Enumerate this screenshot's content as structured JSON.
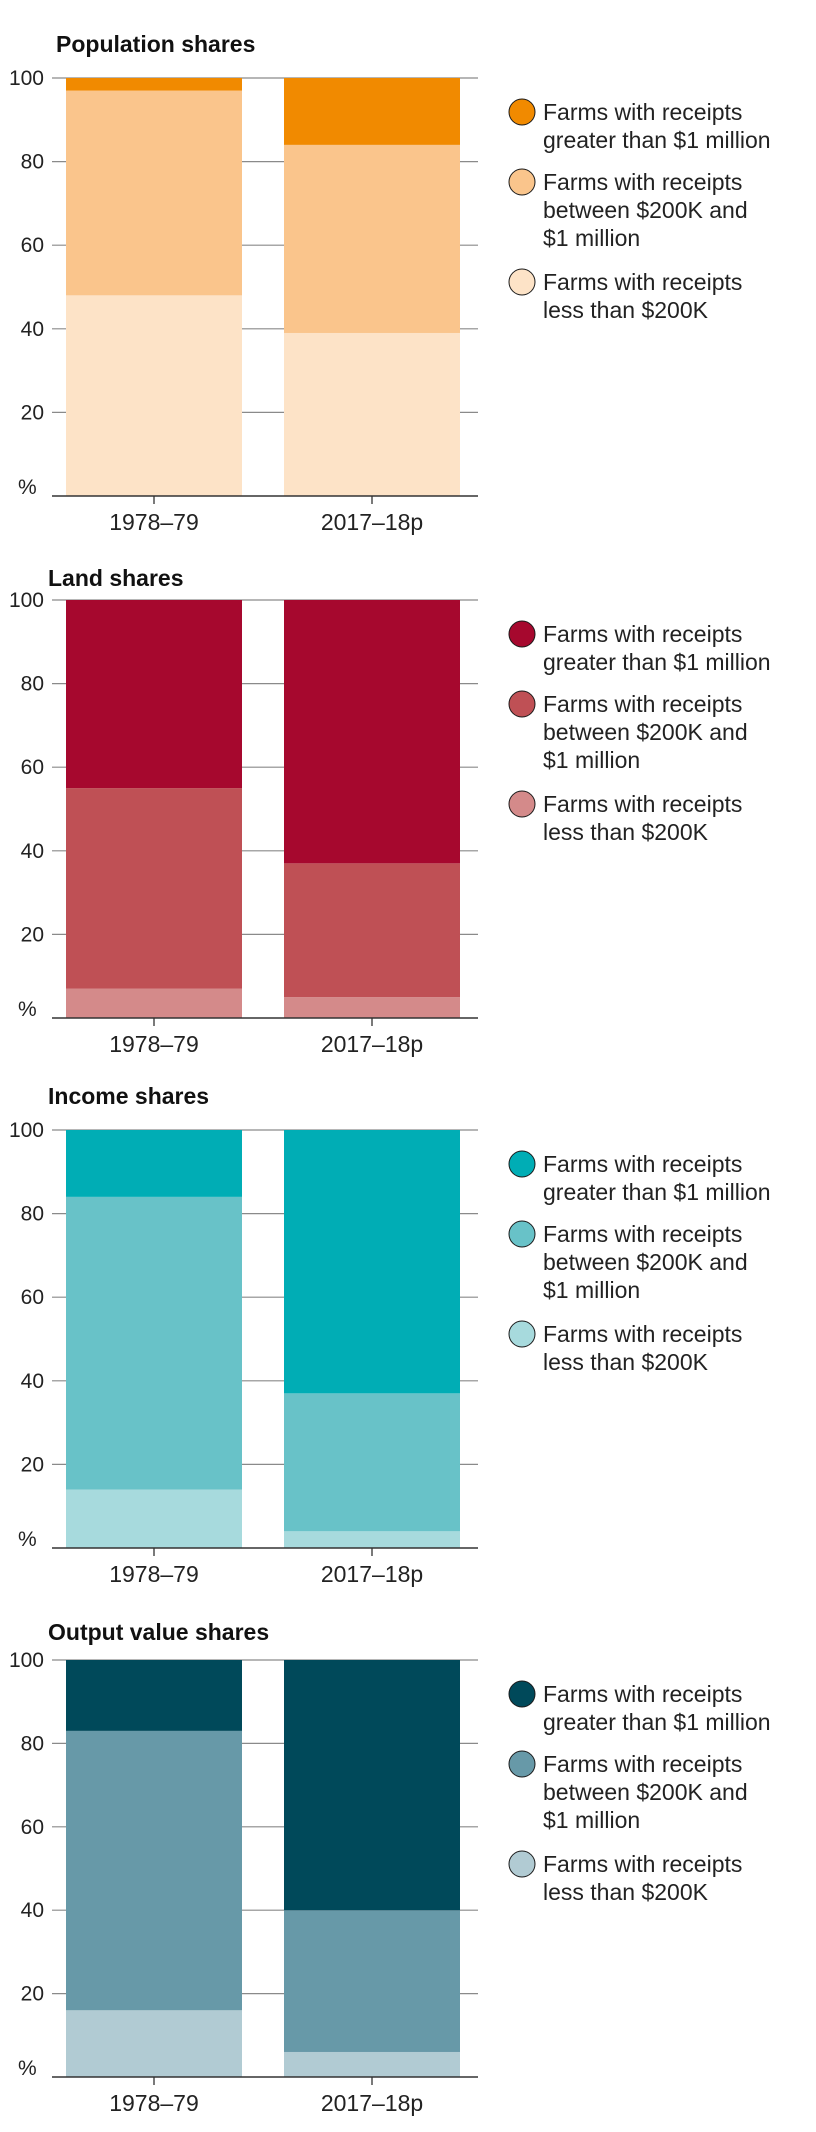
{
  "chart_data": [
    {
      "type": "bar",
      "stacked": true,
      "title": "Population shares",
      "categories": [
        "1978–79",
        "2017–18p"
      ],
      "ylim": [
        0,
        100
      ],
      "yticks": [
        "%",
        "20",
        "40",
        "60",
        "80",
        "100"
      ],
      "grid": true,
      "legend_position": "right",
      "series": [
        {
          "name": "Farms with receipts less than $200K",
          "legend_lines": [
            "Farms with receipts",
            "less than $200K"
          ],
          "values": [
            48,
            39
          ],
          "color": "#fde3c7"
        },
        {
          "name": "Farms with receipts between $200K and $1 million",
          "legend_lines": [
            "Farms with receipts",
            "between $200K and",
            "$1 million"
          ],
          "values": [
            49,
            45
          ],
          "color": "#fac58c"
        },
        {
          "name": "Farms with receipts greater than $1 million",
          "legend_lines": [
            "Farms with receipts",
            "greater than $1 million"
          ],
          "values": [
            3,
            16
          ],
          "color": "#f18a00"
        }
      ]
    },
    {
      "type": "bar",
      "stacked": true,
      "title": "Land shares",
      "categories": [
        "1978–79",
        "2017–18p"
      ],
      "ylim": [
        0,
        100
      ],
      "yticks": [
        "%",
        "20",
        "40",
        "60",
        "80",
        "100"
      ],
      "grid": true,
      "legend_position": "right",
      "series": [
        {
          "name": "Farms with receipts less than $200K",
          "legend_lines": [
            "Farms with receipts",
            "less than $200K"
          ],
          "values": [
            7,
            5
          ],
          "color": "#d48a8a"
        },
        {
          "name": "Farms with receipts between $200K and $1 million",
          "legend_lines": [
            "Farms with receipts",
            "between $200K and",
            "$1 million"
          ],
          "values": [
            48,
            32
          ],
          "color": "#bf5055"
        },
        {
          "name": "Farms with receipts greater than $1 million",
          "legend_lines": [
            "Farms with receipts",
            "greater than $1 million"
          ],
          "values": [
            45,
            63
          ],
          "color": "#a6082e"
        }
      ]
    },
    {
      "type": "bar",
      "stacked": true,
      "title": "Income shares",
      "categories": [
        "1978–79",
        "2017–18p"
      ],
      "ylim": [
        0,
        100
      ],
      "yticks": [
        "%",
        "20",
        "40",
        "60",
        "80",
        "100"
      ],
      "grid": true,
      "legend_position": "right",
      "series": [
        {
          "name": "Farms with receipts less than $200K",
          "legend_lines": [
            "Farms with receipts",
            "less than $200K"
          ],
          "values": [
            14,
            4
          ],
          "color": "#a7dadd"
        },
        {
          "name": "Farms with receipts between $200K and $1 million",
          "legend_lines": [
            "Farms with receipts",
            "between $200K and",
            "$1 million"
          ],
          "values": [
            70,
            33
          ],
          "color": "#68c2c8"
        },
        {
          "name": "Farms with receipts greater than $1 million",
          "legend_lines": [
            "Farms with receipts",
            "greater than $1 million"
          ],
          "values": [
            16,
            63
          ],
          "color": "#00adb5"
        }
      ]
    },
    {
      "type": "bar",
      "stacked": true,
      "title": "Output value shares",
      "categories": [
        "1978–79",
        "2017–18p"
      ],
      "ylim": [
        0,
        100
      ],
      "yticks": [
        "%",
        "20",
        "40",
        "60",
        "80",
        "100"
      ],
      "grid": true,
      "legend_position": "right",
      "series": [
        {
          "name": "Farms with receipts less than $200K",
          "legend_lines": [
            "Farms with receipts",
            "less than $200K"
          ],
          "values": [
            16,
            6
          ],
          "color": "#b1cbd3"
        },
        {
          "name": "Farms with receipts between $200K and $1 million",
          "legend_lines": [
            "Farms with receipts",
            "between $200K and",
            "$1 million"
          ],
          "values": [
            67,
            34
          ],
          "color": "#6799a8"
        },
        {
          "name": "Farms with receipts greater than $1 million",
          "legend_lines": [
            "Farms with receipts",
            "greater than $1 million"
          ],
          "values": [
            17,
            60
          ],
          "color": "#00495a"
        }
      ]
    }
  ]
}
